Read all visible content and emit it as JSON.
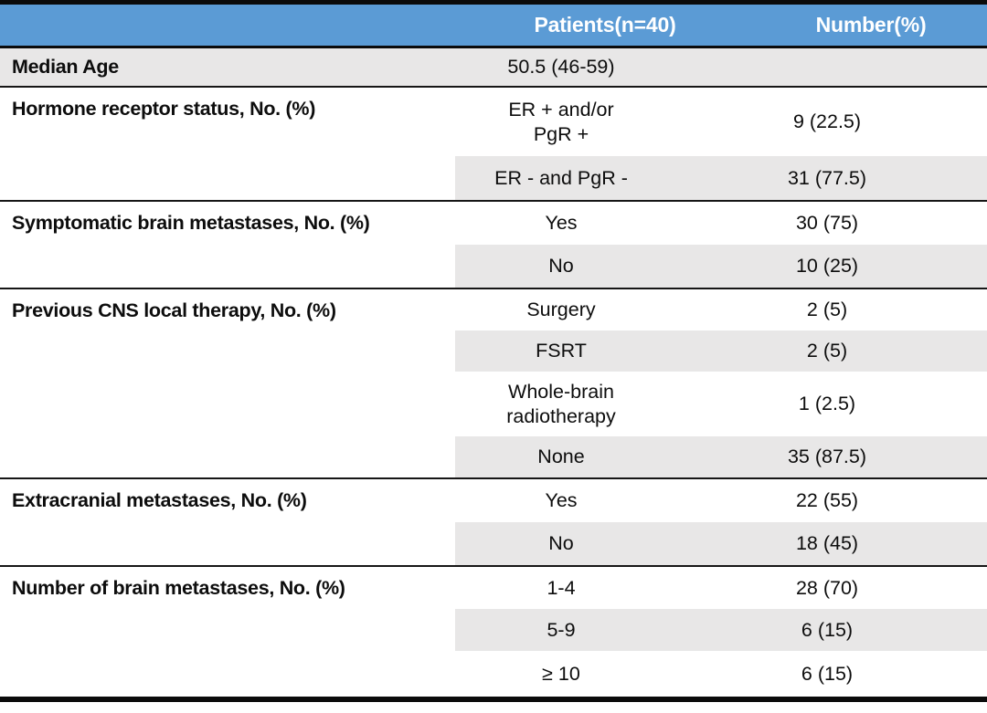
{
  "header": {
    "patients": "Patients(n=40)",
    "number": "Number(%)"
  },
  "colors": {
    "header_bg": "#5B9BD5",
    "header_text": "#FFFFFF",
    "row_shade": "#E8E7E7",
    "rule": "#0B0B0B",
    "text": "#0D0D0D"
  },
  "sections": [
    {
      "label": "Median Age",
      "rows": [
        {
          "value": "50.5 (46-59)",
          "number": ""
        }
      ]
    },
    {
      "label": "Hormone receptor status, No. (%)",
      "rows": [
        {
          "value": "ER + and/or\nPgR +",
          "number": "9 (22.5)"
        },
        {
          "value": "ER - and PgR -",
          "number": "31 (77.5)"
        }
      ]
    },
    {
      "label": "Symptomatic brain metastases, No. (%)",
      "rows": [
        {
          "value": "Yes",
          "number": "30 (75)"
        },
        {
          "value": "No",
          "number": "10 (25)"
        }
      ]
    },
    {
      "label": "Previous CNS local therapy, No. (%)",
      "rows": [
        {
          "value": "Surgery",
          "number": "2 (5)"
        },
        {
          "value": "FSRT",
          "number": "2 (5)"
        },
        {
          "value": "Whole-brain\nradiotherapy",
          "number": "1 (2.5)"
        },
        {
          "value": "None",
          "number": "35 (87.5)"
        }
      ]
    },
    {
      "label": "Extracranial metastases, No. (%)",
      "rows": [
        {
          "value": "Yes",
          "number": "22 (55)"
        },
        {
          "value": "No",
          "number": "18 (45)"
        }
      ]
    },
    {
      "label": "Number of brain metastases, No. (%)",
      "rows": [
        {
          "value": "1-4",
          "number": "28 (70)"
        },
        {
          "value": "5-9",
          "number": "6 (15)"
        },
        {
          "value": "≥ 10",
          "number": "6 (15)"
        }
      ]
    }
  ]
}
